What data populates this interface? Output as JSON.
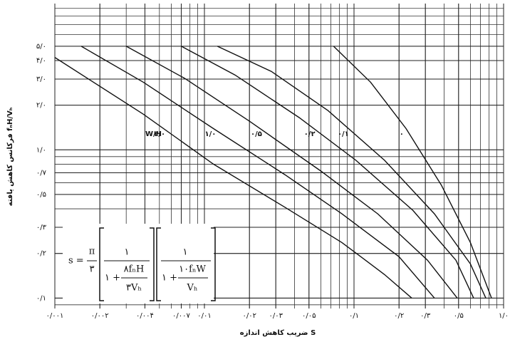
{
  "chart_data": {
    "type": "line",
    "x_label": "ضریب کاهش اندازه S",
    "y_label": "فرکانس کاهش یافته fₙH/Vₕ",
    "legend_title": "W/H",
    "x_log": true,
    "y_log": true,
    "grid": true,
    "xlim": [
      0.001,
      1.0
    ],
    "ylim": [
      0.085,
      9.7
    ],
    "xticks": [
      {
        "value": 0.001,
        "label": "۰/۰۰۱"
      },
      {
        "value": 0.002,
        "label": "۰/۰۰۲"
      },
      {
        "value": 0.004,
        "label": "۰/۰۰۴"
      },
      {
        "value": 0.007,
        "label": "۰/۰۰۷"
      },
      {
        "value": 0.01,
        "label": "۰/۰۱"
      },
      {
        "value": 0.02,
        "label": "۰/۰۲"
      },
      {
        "value": 0.03,
        "label": "۰/۰۳"
      },
      {
        "value": 0.05,
        "label": "۰/۰۵"
      },
      {
        "value": 0.1,
        "label": "۰/۱"
      },
      {
        "value": 0.2,
        "label": "۰/۲"
      },
      {
        "value": 0.3,
        "label": "۰/۳"
      },
      {
        "value": 0.5,
        "label": "۰/۵"
      },
      {
        "value": 1.0,
        "label": "۱/۰"
      }
    ],
    "yticks": [
      {
        "value": 0.1,
        "label": "۰/۱"
      },
      {
        "value": 0.2,
        "label": "۰/۲"
      },
      {
        "value": 0.3,
        "label": "۰/۳"
      },
      {
        "value": 0.5,
        "label": "۰/۵"
      },
      {
        "value": 0.7,
        "label": "۰/۷"
      },
      {
        "value": 1.0,
        "label": "۱/۰"
      },
      {
        "value": 2.0,
        "label": "۲/۰"
      },
      {
        "value": 3.0,
        "label": "۳/۰"
      },
      {
        "value": 4.0,
        "label": "۴/۰"
      },
      {
        "value": 5.0,
        "label": "۵/۰"
      }
    ],
    "series": [
      {
        "name": "۲/۰",
        "color": "#111111",
        "x": [
          0.001,
          0.0039,
          0.0115,
          0.0345,
          0.083,
          0.16,
          0.243
        ],
        "values": [
          4.2,
          1.74,
          0.8,
          0.41,
          0.237,
          0.144,
          0.1
        ]
      },
      {
        "name": "۱/۰",
        "color": "#111111",
        "x": [
          0.0015,
          0.0039,
          0.0115,
          0.0345,
          0.083,
          0.2,
          0.345
        ],
        "values": [
          5.0,
          2.86,
          1.39,
          0.68,
          0.37,
          0.19,
          0.1
        ]
      },
      {
        "name": "۰/۵",
        "color": "#111111",
        "x": [
          0.003,
          0.0074,
          0.02,
          0.06,
          0.144,
          0.31,
          0.49
        ],
        "values": [
          5.0,
          3.03,
          1.56,
          0.72,
          0.37,
          0.18,
          0.1
        ]
      },
      {
        "name": "۰/۲",
        "color": "#111111",
        "x": [
          0.007,
          0.016,
          0.043,
          0.103,
          0.248,
          0.48,
          0.63
        ],
        "values": [
          5.0,
          3.2,
          1.65,
          0.85,
          0.39,
          0.18,
          0.1
        ]
      },
      {
        "name": "۰/۱",
        "color": "#111111",
        "x": [
          0.0122,
          0.028,
          0.067,
          0.16,
          0.345,
          0.6,
          0.76
        ],
        "values": [
          5.0,
          3.38,
          1.84,
          0.85,
          0.37,
          0.17,
          0.1
        ]
      },
      {
        "name": "۰",
        "color": "#111111",
        "x": [
          0.073,
          0.129,
          0.223,
          0.385,
          0.6,
          0.83
        ],
        "values": [
          5.0,
          2.86,
          1.39,
          0.575,
          0.237,
          0.1
        ]
      }
    ],
    "formula": {
      "lhs": "s =",
      "pi": "π",
      "three": "۳",
      "f1_num": "۱",
      "f1_one": "۱ +",
      "f1_top": "۸fₙH",
      "f1_bottom": "۳Vₕ",
      "f2_num": "۱",
      "f2_one": "۱ +",
      "f2_top": "۱۰fₙW",
      "f2_bottom": "Vₕ"
    }
  }
}
